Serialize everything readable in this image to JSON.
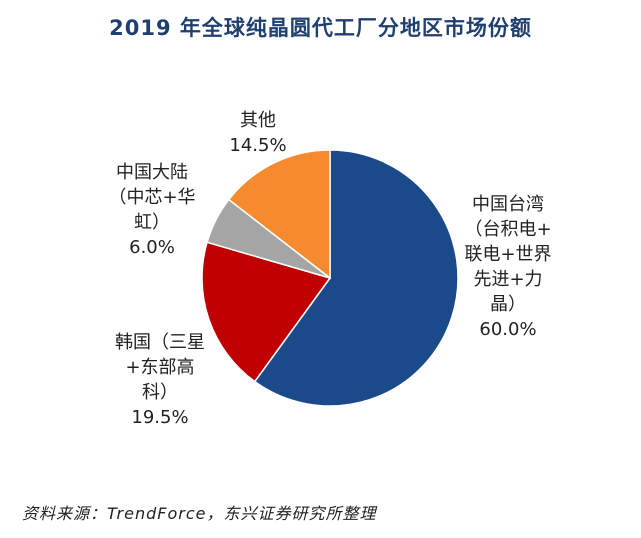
{
  "chart_data": {
    "type": "pie",
    "title": "2019 年全球纯晶圆代工厂分地区市场份额",
    "slices": [
      {
        "label_lines": [
          "中国台湾",
          "（台积电+",
          "联电+世界",
          "先进+力",
          "晶）"
        ],
        "value_text": "60.0%",
        "value": 60.0,
        "color": "#1b4a8a"
      },
      {
        "label_lines": [
          "韩国（三星",
          "+东部高",
          "科）"
        ],
        "value_text": "19.5%",
        "value": 19.5,
        "color": "#c00000"
      },
      {
        "label_lines": [
          "中国大陆",
          "（中芯+华",
          "虹）"
        ],
        "value_text": "6.0%",
        "value": 6.0,
        "color": "#a5a5a5"
      },
      {
        "label_lines": [
          "其他"
        ],
        "value_text": "14.5%",
        "value": 14.5,
        "color": "#f58a2e"
      }
    ],
    "source": "资料来源：TrendForce，东兴证券研究所整理"
  }
}
